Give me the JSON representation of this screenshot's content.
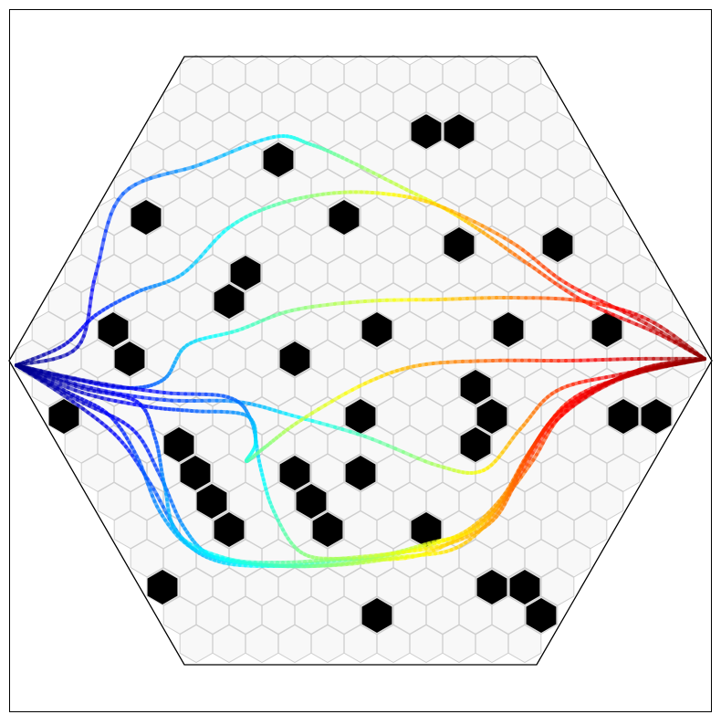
{
  "colors": {
    "background": "#ffffff",
    "frame": "#000000",
    "arena_border": "#000000",
    "grid_line": "#cfcfcf",
    "grid_fill": "#f8f8f8",
    "obstacle": "#000000",
    "colormap": "jet"
  },
  "arena": {
    "shape": "hexagon",
    "grid": "hexagonal cells",
    "obstacle_cells": [
      [
        467,
        144
      ],
      [
        503,
        144
      ],
      [
        305,
        175
      ],
      [
        160,
        238
      ],
      [
        377,
        238
      ],
      [
        503,
        268
      ],
      [
        611,
        268
      ],
      [
        269,
        299
      ],
      [
        251,
        330
      ],
      [
        124,
        361
      ],
      [
        413,
        361
      ],
      [
        557,
        361
      ],
      [
        665,
        361
      ],
      [
        142,
        393
      ],
      [
        323,
        393
      ],
      [
        521,
        424
      ],
      [
        70,
        456
      ],
      [
        395,
        456
      ],
      [
        539,
        456
      ],
      [
        683,
        456
      ],
      [
        719,
        456
      ],
      [
        196,
        487
      ],
      [
        521,
        487
      ],
      [
        214,
        518
      ],
      [
        323,
        518
      ],
      [
        395,
        518
      ],
      [
        232,
        549
      ],
      [
        341,
        549
      ],
      [
        251,
        580
      ],
      [
        359,
        580
      ],
      [
        467,
        580
      ],
      [
        178,
        643
      ],
      [
        539,
        643
      ],
      [
        575,
        643
      ],
      [
        593,
        674
      ],
      [
        413,
        674
      ]
    ]
  },
  "trajectories": [
    {
      "id": "t1",
      "points": [
        [
          18,
          400
        ],
        [
          85,
          380
        ],
        [
          105,
          300
        ],
        [
          135,
          212
        ],
        [
          220,
          180
        ],
        [
          300,
          150
        ],
        [
          340,
          158
        ],
        [
          380,
          175
        ],
        [
          440,
          205
        ],
        [
          490,
          230
        ],
        [
          530,
          255
        ],
        [
          580,
          290
        ],
        [
          640,
          330
        ],
        [
          720,
          365
        ],
        [
          772,
          393
        ]
      ]
    },
    {
      "id": "t2",
      "points": [
        [
          18,
          400
        ],
        [
          70,
          378
        ],
        [
          105,
          345
        ],
        [
          150,
          320
        ],
        [
          200,
          300
        ],
        [
          250,
          250
        ],
        [
          300,
          225
        ],
        [
          360,
          212
        ],
        [
          420,
          212
        ],
        [
          480,
          225
        ],
        [
          560,
          265
        ],
        [
          620,
          310
        ],
        [
          700,
          350
        ],
        [
          772,
          393
        ]
      ]
    },
    {
      "id": "t3",
      "points": [
        [
          18,
          400
        ],
        [
          80,
          415
        ],
        [
          140,
          425
        ],
        [
          180,
          415
        ],
        [
          205,
          378
        ],
        [
          260,
          362
        ],
        [
          320,
          340
        ],
        [
          400,
          330
        ],
        [
          480,
          328
        ],
        [
          560,
          326
        ],
        [
          640,
          330
        ],
        [
          710,
          350
        ],
        [
          772,
          393
        ]
      ]
    },
    {
      "id": "t4",
      "points": [
        [
          18,
          400
        ],
        [
          100,
          425
        ],
        [
          180,
          438
        ],
        [
          260,
          440
        ],
        [
          320,
          455
        ],
        [
          400,
          478
        ],
        [
          480,
          510
        ],
        [
          530,
          515
        ],
        [
          570,
          470
        ],
        [
          610,
          428
        ],
        [
          680,
          410
        ],
        [
          772,
          393
        ]
      ]
    },
    {
      "id": "t5",
      "points": [
        [
          18,
          400
        ],
        [
          100,
          418
        ],
        [
          180,
          430
        ],
        [
          250,
          435
        ],
        [
          275,
          460
        ],
        [
          285,
          510
        ],
        [
          300,
          560
        ],
        [
          330,
          605
        ],
        [
          380,
          612
        ],
        [
          460,
          608
        ],
        [
          530,
          570
        ],
        [
          580,
          510
        ],
        [
          620,
          450
        ],
        [
          700,
          405
        ],
        [
          772,
          393
        ]
      ]
    },
    {
      "id": "t6",
      "points": [
        [
          18,
          400
        ],
        [
          90,
          430
        ],
        [
          160,
          445
        ],
        [
          210,
          450
        ],
        [
          270,
          455
        ],
        [
          280,
          485
        ],
        [
          270,
          505
        ],
        [
          290,
          490
        ],
        [
          330,
          460
        ],
        [
          400,
          420
        ],
        [
          460,
          400
        ],
        [
          540,
          395
        ],
        [
          620,
          395
        ],
        [
          700,
          393
        ],
        [
          772,
          393
        ]
      ]
    },
    {
      "id": "t7",
      "points": [
        [
          18,
          400
        ],
        [
          80,
          440
        ],
        [
          130,
          480
        ],
        [
          165,
          530
        ],
        [
          200,
          590
        ],
        [
          240,
          615
        ],
        [
          300,
          620
        ],
        [
          360,
          615
        ],
        [
          420,
          608
        ],
        [
          470,
          595
        ],
        [
          520,
          580
        ],
        [
          555,
          540
        ],
        [
          590,
          480
        ],
        [
          630,
          435
        ],
        [
          700,
          408
        ],
        [
          772,
          393
        ]
      ]
    },
    {
      "id": "t8",
      "points": [
        [
          18,
          400
        ],
        [
          85,
          438
        ],
        [
          145,
          470
        ],
        [
          175,
          520
        ],
        [
          200,
          575
        ],
        [
          230,
          608
        ],
        [
          280,
          618
        ],
        [
          340,
          620
        ],
        [
          400,
          614
        ],
        [
          460,
          600
        ],
        [
          510,
          582
        ],
        [
          550,
          545
        ],
        [
          580,
          495
        ],
        [
          620,
          445
        ],
        [
          690,
          410
        ],
        [
          772,
          393
        ]
      ]
    },
    {
      "id": "t9",
      "points": [
        [
          18,
          400
        ],
        [
          90,
          425
        ],
        [
          150,
          440
        ],
        [
          170,
          480
        ],
        [
          180,
          530
        ],
        [
          195,
          585
        ],
        [
          250,
          612
        ],
        [
          310,
          616
        ],
        [
          370,
          612
        ],
        [
          430,
          606
        ],
        [
          490,
          596
        ],
        [
          540,
          570
        ],
        [
          570,
          520
        ],
        [
          610,
          460
        ],
        [
          680,
          415
        ],
        [
          772,
          393
        ]
      ]
    },
    {
      "id": "t10",
      "points": [
        [
          18,
          400
        ],
        [
          75,
          430
        ],
        [
          120,
          455
        ],
        [
          150,
          500
        ],
        [
          175,
          560
        ],
        [
          210,
          600
        ],
        [
          260,
          615
        ],
        [
          320,
          620
        ],
        [
          380,
          618
        ],
        [
          440,
          610
        ],
        [
          500,
          600
        ],
        [
          545,
          560
        ],
        [
          575,
          505
        ],
        [
          615,
          450
        ],
        [
          695,
          407
        ],
        [
          772,
          393
        ]
      ]
    }
  ]
}
